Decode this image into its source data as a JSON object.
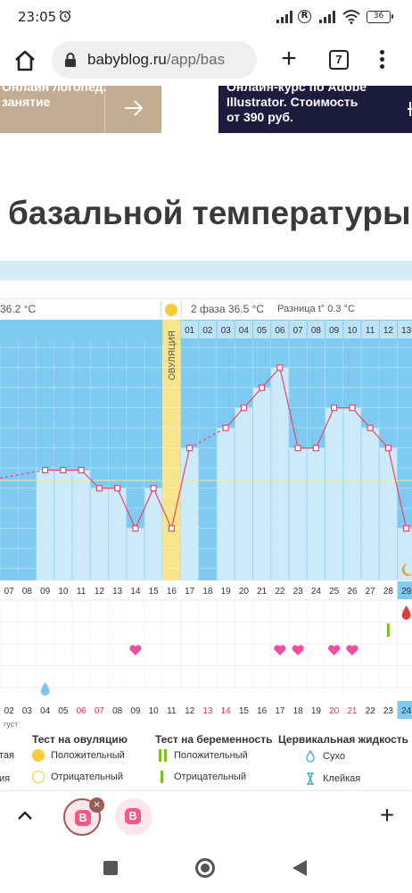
{
  "status_bar": {
    "time": "23:05",
    "battery": "36",
    "icons": [
      "alarm-icon",
      "signal-icon",
      "r-icon",
      "signal-icon",
      "wifi-icon",
      "battery-icon"
    ]
  },
  "browser": {
    "url_host": "babyblog.ru",
    "url_path": "/app/bas",
    "tab_count": "7"
  },
  "ads": {
    "left": {
      "line1": "Онлайн логопед.",
      "line2": "занятие"
    },
    "right": {
      "line1": "Онлайн-курс по Adobe",
      "line2": "Illustrator. Стоимость",
      "line3": "от 390 руб."
    }
  },
  "page": {
    "heading": "базальной температуры"
  },
  "chart": {
    "phase1_text": "36.2 °С",
    "phase2_text": "2 фаза 36.5 °С",
    "diff_text": "Разница t° 0.3 °С",
    "ovulation_label": "ОВУЛЯЦИЯ",
    "colors": {
      "plot_bg": "#7fcaf1",
      "bar": "#cdeafa",
      "line": "#e8456a",
      "ovulation_band": "#f8e48a",
      "header_cell": "#bde3f6",
      "today": "#7fcaf1"
    }
  },
  "chart_data": {
    "type": "line",
    "phase_days": [
      "01",
      "02",
      "03",
      "04",
      "05",
      "06",
      "07",
      "08",
      "09",
      "10",
      "11",
      "12",
      "13"
    ],
    "cycle_days": [
      "07",
      "08",
      "09",
      "10",
      "11",
      "12",
      "13",
      "14",
      "15",
      "16",
      "17",
      "18",
      "19",
      "20",
      "21",
      "22",
      "23",
      "24",
      "25",
      "26",
      "27",
      "28",
      "29"
    ],
    "calendar_days": [
      "02",
      "03",
      "04",
      "05",
      "06",
      "07",
      "08",
      "09",
      "10",
      "11",
      "12",
      "13",
      "14",
      "15",
      "16",
      "17",
      "18",
      "19",
      "20",
      "21",
      "22",
      "23",
      "24"
    ],
    "weekend_calendar_days": [
      "06",
      "07",
      "13",
      "14",
      "20",
      "21"
    ],
    "month_fragment": "густ",
    "today_cycle_day": "29",
    "today_calendar_day": "24",
    "temp_series": [
      {
        "day": "09",
        "level": 3.4
      },
      {
        "day": "10",
        "level": 3.4
      },
      {
        "day": "11",
        "level": 3.4
      },
      {
        "day": "12",
        "level": 2.5
      },
      {
        "day": "13",
        "level": 2.5
      },
      {
        "day": "14",
        "level": 0.5
      },
      {
        "day": "15",
        "level": 2.5
      },
      {
        "day": "16",
        "level": 0.5
      },
      {
        "day": "17",
        "level": 4.5
      },
      {
        "day": "19",
        "level": 5.5
      },
      {
        "day": "20",
        "level": 6.5
      },
      {
        "day": "21",
        "level": 7.5
      },
      {
        "day": "22",
        "level": 8.5
      },
      {
        "day": "23",
        "level": 4.5
      },
      {
        "day": "24",
        "level": 4.5
      },
      {
        "day": "25",
        "level": 6.5
      },
      {
        "day": "26",
        "level": 6.5
      },
      {
        "day": "27",
        "level": 5.5
      },
      {
        "day": "28",
        "level": 4.5
      },
      {
        "day": "29",
        "level": 0.5
      }
    ],
    "dashed_segments": [
      [
        "07",
        "09"
      ],
      [
        "17",
        "19"
      ]
    ],
    "ovulation_day": "16",
    "heart_days": [
      "14",
      "22",
      "23",
      "25",
      "26"
    ],
    "pregnancy_test_days": [
      "28"
    ],
    "cervical_drop_days": [
      "09"
    ],
    "period_days": [
      "29"
    ],
    "moon_days": [
      "29"
    ]
  },
  "legend": {
    "ovulation_test": {
      "title": "Тест на овуляцию",
      "positive": "Положительный",
      "negative": "Отрицательный"
    },
    "pregnancy_test": {
      "title": "Тест на беременность",
      "positive": "Положительный",
      "negative": "Отрицательный"
    },
    "cervical": {
      "title": "Цервикальная жидкость",
      "dry": "Сухо",
      "sticky": "Клейкая"
    },
    "left_fragment": "ия",
    "left_top_fragment": "тая"
  },
  "toolbar": {
    "tab_favicon": "B"
  }
}
